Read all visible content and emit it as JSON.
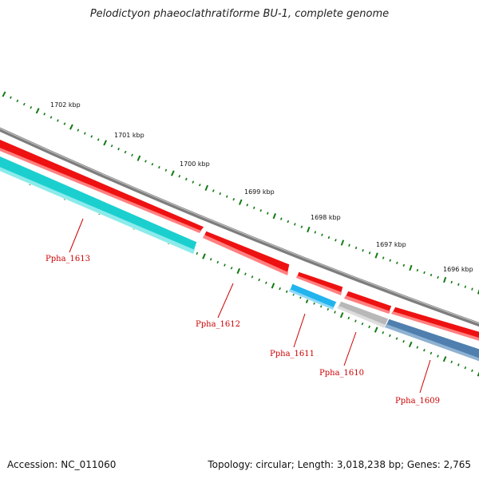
{
  "title": "Pelodictyon phaeoclathratiforme BU-1, complete genome",
  "accession": "Accession: NC_011060",
  "summary": "Topology: circular; Length: 3,018,238 bp; Genes: 2,765",
  "scale_labels": [
    "1702 kbp",
    "1701 kbp",
    "1700 kbp",
    "1699 kbp",
    "1698 kbp",
    "1697 kbp",
    "1696 kbp"
  ],
  "genes": [
    {
      "id": "Ppha_1613",
      "strand": "minus",
      "color": "#1ccfcf"
    },
    {
      "id": "Ppha_1612",
      "strand": "plus",
      "color": "#ee1111"
    },
    {
      "id": "Ppha_1611",
      "strand": "minus",
      "color": "#22b4ee"
    },
    {
      "id": "Ppha_1610",
      "strand": "minus",
      "color": "#b8b8b8"
    },
    {
      "id": "Ppha_1609",
      "strand": "minus",
      "color": "#4f7fae"
    }
  ],
  "colors": {
    "backbone": "#7d7d7d",
    "ticks": "#127a12",
    "forward_gene": "#ee1111",
    "label": "#cc0000"
  }
}
